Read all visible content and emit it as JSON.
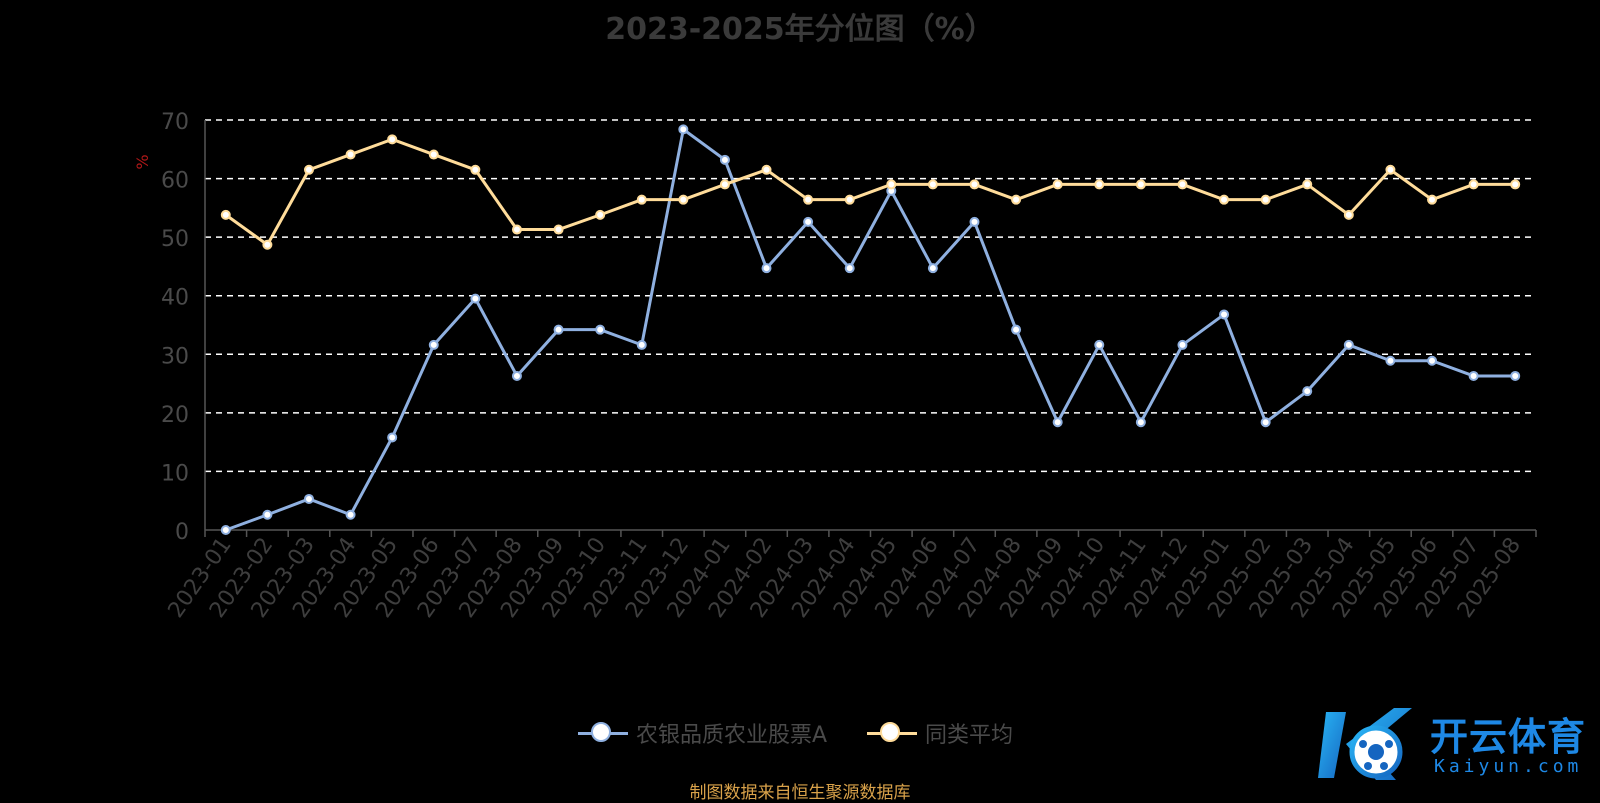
{
  "chart_data": {
    "type": "line",
    "title": "2023-2025年分位图（%）",
    "ylabel": "%",
    "ylim": [
      0,
      70
    ],
    "yticks": [
      0,
      10,
      20,
      30,
      40,
      50,
      60,
      70
    ],
    "grid": true,
    "legend_position": "bottom-center",
    "categories": [
      "2023-01",
      "2023-02",
      "2023-03",
      "2023-04",
      "2023-05",
      "2023-06",
      "2023-07",
      "2023-08",
      "2023-09",
      "2023-10",
      "2023-11",
      "2023-12",
      "2024-01",
      "2024-02",
      "2024-03",
      "2024-04",
      "2024-05",
      "2024-06",
      "2024-07",
      "2024-08",
      "2024-09",
      "2024-10",
      "2024-11",
      "2024-12",
      "2025-01",
      "2025-02",
      "2025-03",
      "2025-04",
      "2025-05",
      "2025-06",
      "2025-07",
      "2025-08"
    ],
    "series": [
      {
        "name": "农银品质农业股票A",
        "color": "#8fb0e0",
        "values": [
          0,
          2.6,
          5.3,
          2.6,
          15.8,
          31.6,
          39.5,
          26.3,
          34.2,
          34.2,
          31.6,
          68.4,
          63.2,
          44.7,
          52.6,
          44.7,
          57.9,
          44.7,
          52.6,
          34.2,
          18.4,
          31.6,
          18.4,
          31.6,
          36.8,
          18.4,
          23.7,
          31.6,
          28.9,
          28.9,
          26.3,
          26.3
        ]
      },
      {
        "name": "同类平均",
        "color": "#ffdc9a",
        "values": [
          53.8,
          48.7,
          61.5,
          64.1,
          66.7,
          64.1,
          61.5,
          51.3,
          51.3,
          53.8,
          56.4,
          56.4,
          59.0,
          61.5,
          56.4,
          56.4,
          59.0,
          59.0,
          59.0,
          56.4,
          59.0,
          59.0,
          59.0,
          59.0,
          56.4,
          56.4,
          59.0,
          53.8,
          61.5,
          56.4,
          59.0,
          59.0
        ]
      }
    ]
  },
  "source_note": "制图数据来自恒生聚源数据库",
  "watermark": {
    "cn": "开云体育",
    "en": "Kaiyun.com"
  },
  "colors": {
    "background": "#000000",
    "grid": "#ffffff",
    "axis": "#555555"
  }
}
